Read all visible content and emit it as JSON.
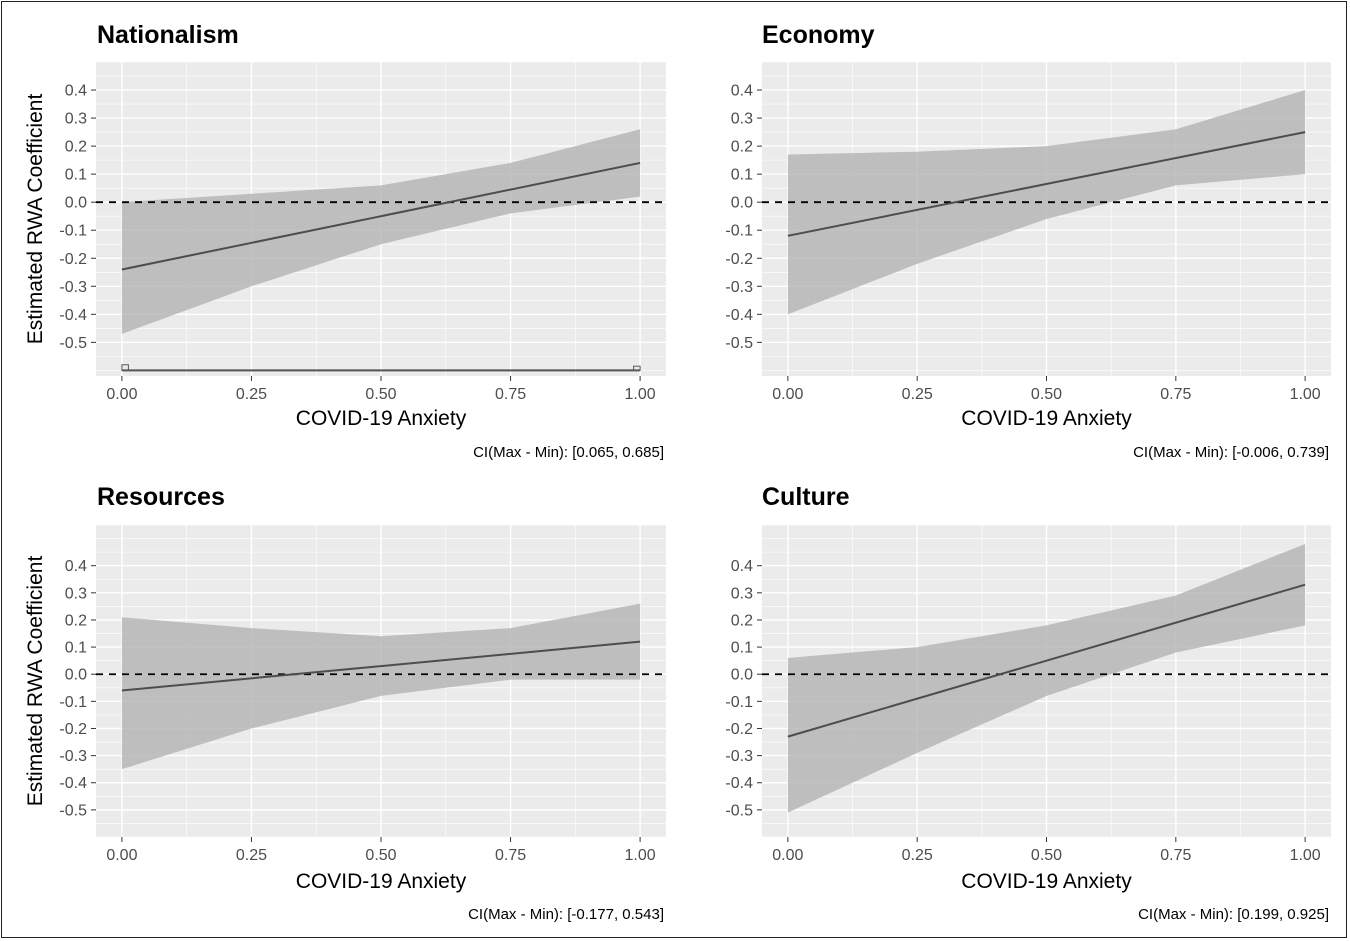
{
  "figure": {
    "ylabel": "Estimated RWA Coefficient",
    "xlabel": "COVID-19 Anxiety"
  },
  "colors": {
    "panel_background": "#ebebeb",
    "grid": "#ffffff",
    "ribbon": "#b3b3b3",
    "line": "#4d4d4d",
    "reference_line": "#000000",
    "histogram_outline": "#555555"
  },
  "chart_data": [
    {
      "type": "line",
      "title": "Nationalism",
      "xlabel": "COVID-19 Anxiety",
      "ylabel": "Estimated RWA Coefficient",
      "x_ticks": [
        "0.00",
        "0.25",
        "0.50",
        "0.75",
        "1.00"
      ],
      "y_ticks": [
        "0.4",
        "0.3",
        "0.2",
        "0.1",
        "0.0",
        "-0.1",
        "-0.2",
        "-0.3",
        "-0.4",
        "-0.5"
      ],
      "xlim": [
        -0.05,
        1.05
      ],
      "ylim": [
        -0.62,
        0.5
      ],
      "reference_y": 0.0,
      "line": {
        "x": [
          0,
          1
        ],
        "y": [
          -0.24,
          0.14
        ]
      },
      "ribbon": {
        "x": [
          0,
          0.25,
          0.5,
          0.75,
          1.0
        ],
        "lower": [
          -0.47,
          -0.3,
          -0.15,
          -0.04,
          0.02
        ],
        "upper": [
          0.0,
          0.03,
          0.06,
          0.14,
          0.26
        ]
      },
      "histogram": {
        "baseline": -0.6,
        "bin_width": 0.0125,
        "heights": [
          0.02,
          0.0,
          0.0,
          0.0,
          0.0,
          0.0,
          0.0,
          0.0,
          0.0,
          0.0,
          0.0,
          0.0,
          0.0,
          0.0,
          0.0,
          0.0,
          0.0,
          0.0,
          0.0,
          0.0,
          0.0,
          0.0,
          0.0,
          0.0,
          0.0,
          0.0,
          0.0,
          0.0,
          0.0,
          0.0,
          0.0,
          0.0,
          0.0,
          0.0,
          0.0,
          0.0,
          0.0,
          0.0,
          0.0,
          0.0,
          0.0,
          0.0,
          0.0,
          0.0,
          0.0,
          0.0,
          0.0,
          0.0,
          0.0,
          0.0,
          0.0,
          0.0,
          0.0,
          0.0,
          0.0,
          0.0,
          0.0,
          0.0,
          0.0,
          0.0,
          0.0,
          0.0,
          0.0,
          0.0,
          0.0,
          0.0,
          0.0,
          0.0,
          0.0,
          0.0,
          0.0,
          0.0,
          0.0,
          0.0,
          0.0,
          0.0,
          0.0,
          0.0,
          0.0,
          0.015
        ]
      },
      "note": "CI(Max - Min): [0.065, 0.685]"
    },
    {
      "type": "line",
      "title": "Economy",
      "xlabel": "COVID-19 Anxiety",
      "ylabel": "",
      "x_ticks": [
        "0.00",
        "0.25",
        "0.50",
        "0.75",
        "1.00"
      ],
      "y_ticks": [
        "0.4",
        "0.3",
        "0.2",
        "0.1",
        "0.0",
        "-0.1",
        "-0.2",
        "-0.3",
        "-0.4",
        "-0.5"
      ],
      "xlim": [
        -0.05,
        1.05
      ],
      "ylim": [
        -0.62,
        0.5
      ],
      "reference_y": 0.0,
      "line": {
        "x": [
          0,
          1
        ],
        "y": [
          -0.12,
          0.25
        ]
      },
      "ribbon": {
        "x": [
          0,
          0.25,
          0.5,
          0.75,
          1.0
        ],
        "lower": [
          -0.4,
          -0.22,
          -0.06,
          0.06,
          0.1
        ],
        "upper": [
          0.17,
          0.18,
          0.2,
          0.26,
          0.4
        ]
      },
      "note": "CI(Max - Min): [-0.006, 0.739]"
    },
    {
      "type": "line",
      "title": "Resources",
      "xlabel": "COVID-19 Anxiety",
      "ylabel": "Estimated RWA Coefficient",
      "x_ticks": [
        "0.00",
        "0.25",
        "0.50",
        "0.75",
        "1.00"
      ],
      "y_ticks": [
        "0.4",
        "0.3",
        "0.2",
        "0.1",
        "0.0",
        "-0.1",
        "-0.2",
        "-0.3",
        "-0.4",
        "-0.5"
      ],
      "xlim": [
        -0.05,
        1.05
      ],
      "ylim": [
        -0.6,
        0.55
      ],
      "reference_y": 0.0,
      "line": {
        "x": [
          0,
          1
        ],
        "y": [
          -0.06,
          0.12
        ]
      },
      "ribbon": {
        "x": [
          0,
          0.25,
          0.5,
          0.75,
          1.0
        ],
        "lower": [
          -0.35,
          -0.2,
          -0.08,
          -0.02,
          -0.02
        ],
        "upper": [
          0.21,
          0.17,
          0.14,
          0.17,
          0.26
        ]
      },
      "note": "CI(Max - Min): [-0.177, 0.543]"
    },
    {
      "type": "line",
      "title": "Culture",
      "xlabel": "COVID-19 Anxiety",
      "ylabel": "",
      "x_ticks": [
        "0.00",
        "0.25",
        "0.50",
        "0.75",
        "1.00"
      ],
      "y_ticks": [
        "0.4",
        "0.3",
        "0.2",
        "0.1",
        "0.0",
        "-0.1",
        "-0.2",
        "-0.3",
        "-0.4",
        "-0.5"
      ],
      "xlim": [
        -0.05,
        1.05
      ],
      "ylim": [
        -0.6,
        0.55
      ],
      "reference_y": 0.0,
      "line": {
        "x": [
          0,
          1
        ],
        "y": [
          -0.23,
          0.33
        ]
      },
      "ribbon": {
        "x": [
          0,
          0.25,
          0.5,
          0.75,
          1.0
        ],
        "lower": [
          -0.51,
          -0.29,
          -0.08,
          0.08,
          0.18
        ],
        "upper": [
          0.06,
          0.1,
          0.18,
          0.29,
          0.48
        ]
      },
      "note": "CI(Max - Min): [0.199, 0.925]"
    }
  ]
}
